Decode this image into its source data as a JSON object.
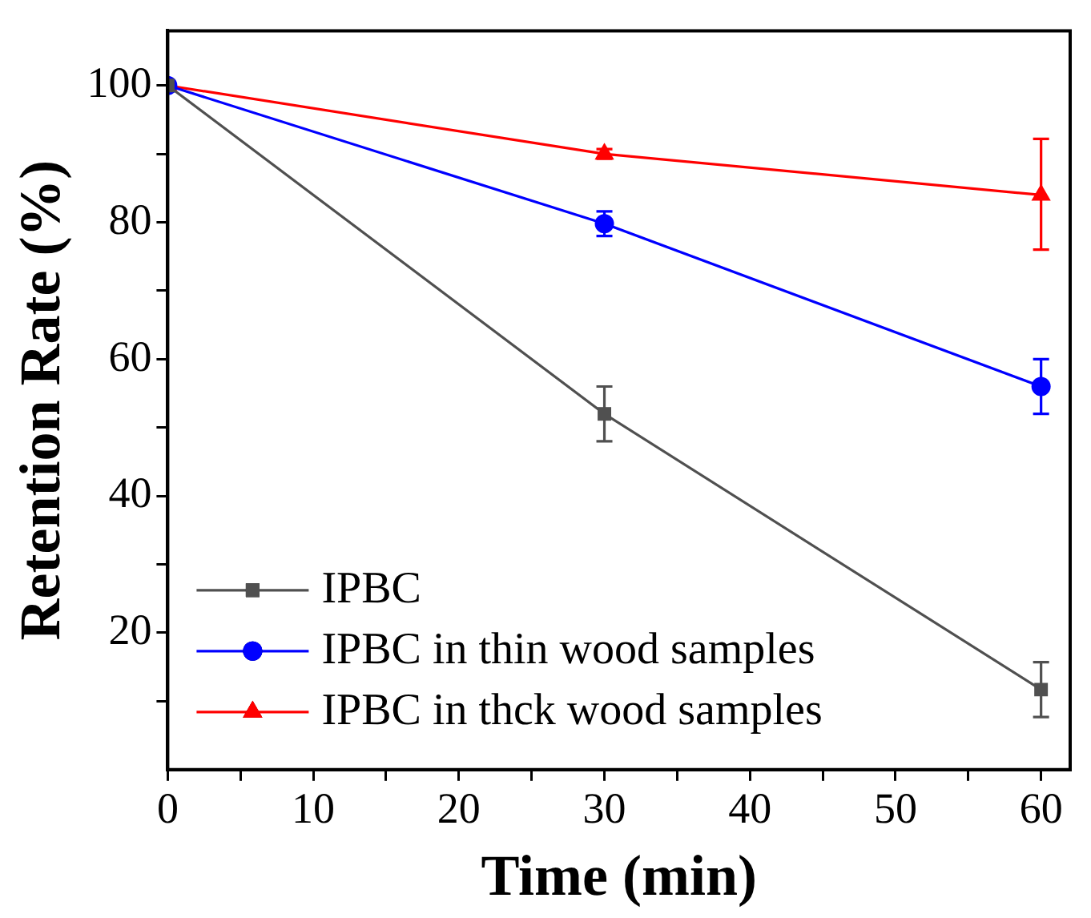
{
  "chart_data": {
    "type": "line",
    "xlabel": "Time (min)",
    "ylabel": "Retention Rate (%)",
    "x": [
      0,
      30,
      60
    ],
    "xlim": [
      0,
      62
    ],
    "ylim": [
      0,
      108
    ],
    "xticks": [
      0,
      {
        "value": 5,
        "label": null
      },
      10,
      {
        "value": 15,
        "label": null
      },
      20,
      {
        "value": 25,
        "label": null
      },
      30,
      {
        "value": 35,
        "label": null
      },
      40,
      {
        "value": 45,
        "label": null
      },
      50,
      {
        "value": 55,
        "label": null
      },
      60
    ],
    "yticks": [
      {
        "value": 10,
        "label": null
      },
      20,
      {
        "value": 30,
        "label": null
      },
      40,
      {
        "value": 50,
        "label": null
      },
      60,
      {
        "value": 70,
        "label": null
      },
      80,
      {
        "value": 90,
        "label": null
      },
      100
    ],
    "grid": false,
    "legend": "bottom left",
    "line_style": "solid",
    "series": [
      {
        "name": "IPBC",
        "color": "#505050",
        "marker": "square",
        "values": [
          100,
          52,
          11.7
        ],
        "errors": [
          null,
          4,
          4
        ]
      },
      {
        "name": "IPBC in thin wood samples",
        "color": "#0000ff",
        "marker": "circle",
        "values": [
          100,
          79.8,
          56
        ],
        "errors": [
          null,
          1.8,
          4
        ]
      },
      {
        "name": "IPBC in thck wood samples",
        "color": "#ff0000",
        "marker": "triangle",
        "values": [
          100,
          90,
          84
        ],
        "errors": [
          null,
          0.7,
          [
            76,
            92.2
          ]
        ]
      }
    ]
  }
}
